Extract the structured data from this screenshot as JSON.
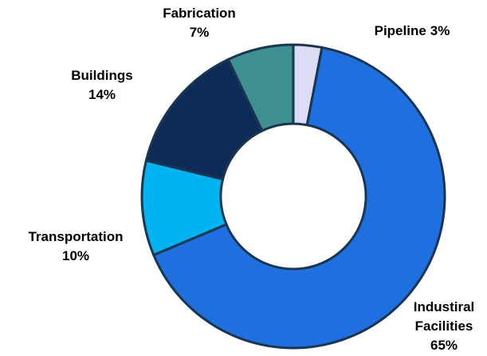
{
  "chart_data": {
    "type": "donut",
    "categories": [
      "Pipeline",
      "Industiral Facilities",
      "Transportation",
      "Buildings",
      "Fabrication"
    ],
    "values": [
      3,
      65,
      10,
      14,
      7
    ],
    "value_labels": [
      "3%",
      "65%",
      "10%",
      "14%",
      "7%"
    ],
    "colors": [
      "#dcdcf4",
      "#1e6fdf",
      "#00b4f2",
      "#0d2b57",
      "#3d8f90"
    ]
  }
}
